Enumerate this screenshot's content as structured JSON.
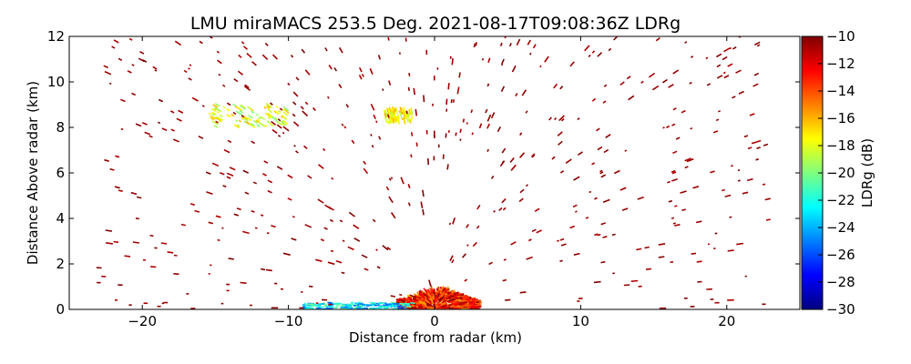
{
  "chart_data": {
    "type": "scatter",
    "title": "LMU miraMACS 253.5 Deg. 2021-08-17T09:08:36Z  LDRg",
    "xlabel": "Distance from radar (km)",
    "ylabel": "Distance Above radar  (km)",
    "xlim": [
      -25,
      25
    ],
    "ylim": [
      0,
      12
    ],
    "xticks": [
      -20,
      -10,
      0,
      10,
      20
    ],
    "xtick_labels": [
      "−20",
      "−10",
      "0",
      "10",
      "20"
    ],
    "yticks": [
      0,
      2,
      4,
      6,
      8,
      10,
      12
    ],
    "ytick_labels": [
      "0",
      "2",
      "4",
      "6",
      "8",
      "10",
      "12"
    ],
    "grid": false,
    "colorbar": {
      "label": "LDRg (dB)",
      "vmin": -30,
      "vmax": -10,
      "ticks": [
        -10,
        -12,
        -14,
        -16,
        -18,
        -20,
        -22,
        -24,
        -26,
        -28,
        -30
      ],
      "tick_labels": [
        "−10",
        "−12",
        "−14",
        "−16",
        "−18",
        "−20",
        "−22",
        "−24",
        "−26",
        "−28",
        "−30"
      ],
      "colormap": [
        "#00007f",
        "#0000ff",
        "#007fff",
        "#00ffff",
        "#7fff7f",
        "#ffff00",
        "#ff7f00",
        "#ff0000",
        "#7f0000"
      ]
    },
    "regions": [
      {
        "name": "near-radar echo cluster",
        "x_range": [
          -2.5,
          3
        ],
        "y_range": [
          0,
          1
        ],
        "ldr_range": [
          -16,
          -10
        ],
        "dominant_ldr": -12
      },
      {
        "name": "low-level echo band west",
        "x_range": [
          -9,
          -1.5
        ],
        "y_range": [
          0,
          0.3
        ],
        "ldr_range": [
          -26,
          -20
        ],
        "dominant_ldr": -23
      },
      {
        "name": "aloft echo patch west",
        "x_range": [
          -15.5,
          -10
        ],
        "y_range": [
          8,
          9
        ],
        "ldr_range": [
          -20,
          -16
        ],
        "dominant_ldr": -17
      },
      {
        "name": "aloft echo patch central",
        "x_range": [
          -3.5,
          -1.5
        ],
        "y_range": [
          8.2,
          8.8
        ],
        "ldr_range": [
          -19,
          -16
        ],
        "dominant_ldr": -17
      },
      {
        "name": "scattered speckle",
        "x_range": [
          -23,
          23
        ],
        "y_range": [
          0,
          12
        ],
        "ldr_range": [
          -11,
          -10
        ],
        "dominant_ldr": -10
      }
    ]
  }
}
